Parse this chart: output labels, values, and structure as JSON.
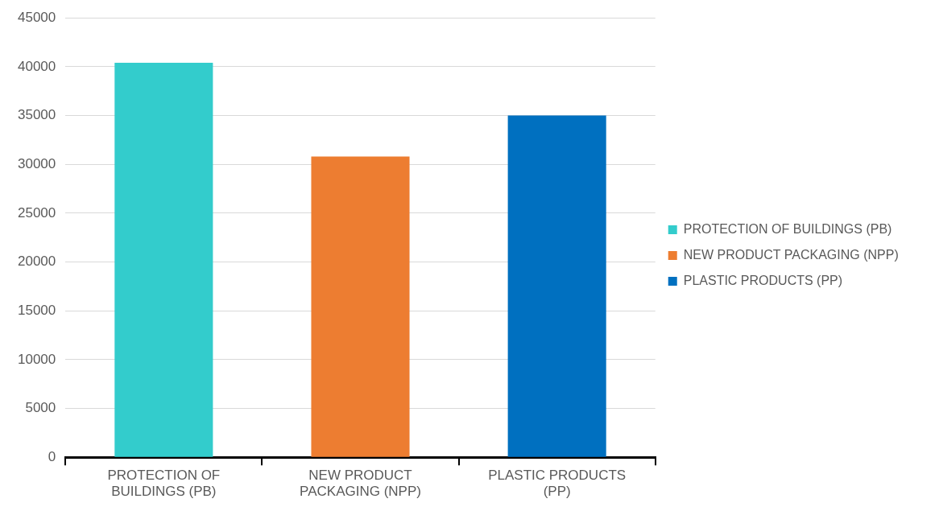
{
  "chart_data": {
    "type": "bar",
    "categories": [
      "PROTECTION OF BUILDINGS (PB)",
      "NEW PRODUCT PACKAGING (NPP)",
      "PLASTIC PRODUCTS (PP)"
    ],
    "series": [
      {
        "name": "PROTECTION OF BUILDINGS (PB)",
        "color": "#33cccc",
        "values": [
          40400,
          null,
          null
        ]
      },
      {
        "name": "NEW PRODUCT PACKAGING (NPP)",
        "color": "#ed7d31",
        "values": [
          null,
          30800,
          null
        ]
      },
      {
        "name": "PLASTIC PRODUCTS (PP)",
        "color": "#0070c0",
        "values": [
          null,
          null,
          35000
        ]
      }
    ],
    "ylim": [
      0,
      45000
    ],
    "yticks": [
      0,
      5000,
      10000,
      15000,
      20000,
      25000,
      30000,
      35000,
      40000,
      45000
    ],
    "grid": "y",
    "legend": "right"
  }
}
